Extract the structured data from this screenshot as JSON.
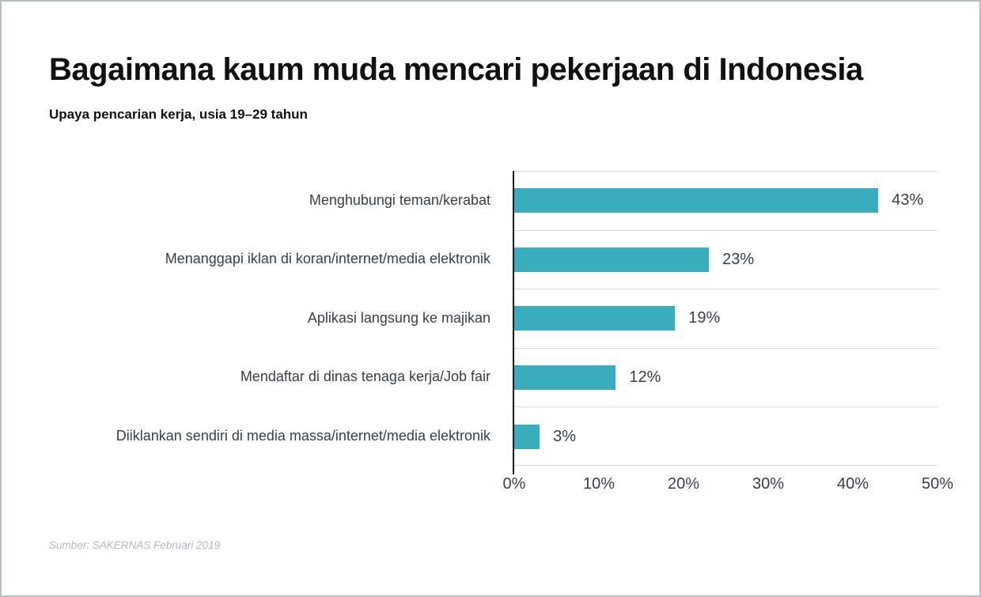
{
  "page": {
    "title": "Bagaimana kaum muda mencari pekerjaan di Indonesia",
    "subtitle": "Upaya pencarian kerja, usia 19–29 tahun",
    "source": "Sumber: SAKERNAS Februari 2019"
  },
  "colors": {
    "bar": "#3AADBD",
    "text": "#36404D",
    "grid": "#D8DCDE",
    "axis": "#1A1A1A",
    "source_text": "#B3B9BD",
    "page_border": "#B7BEC1",
    "title_color": "#111111"
  },
  "chart_data": {
    "type": "bar",
    "orientation": "horizontal",
    "title": "Bagaimana kaum muda mencari pekerjaan di Indonesia",
    "subtitle": "Upaya pencarian kerja, usia 19–29 tahun",
    "categories": [
      "Menghubungi teman/kerabat",
      "Menanggapi iklan di koran/internet/media elektronik",
      "Aplikasi langsung ke majikan",
      "Mendaftar di dinas tenaga kerja/Job fair",
      "Diiklankan sendiri di media massa/internet/media elektronik"
    ],
    "values": [
      43,
      23,
      19,
      12,
      3
    ],
    "value_labels": [
      "43%",
      "23%",
      "19%",
      "12%",
      "3%"
    ],
    "xlabel": "",
    "ylabel": "",
    "xlim": [
      0,
      50
    ],
    "x_ticks": [
      "0%",
      "10%",
      "20%",
      "30%",
      "40%",
      "50%"
    ],
    "grid": "horizontal row separators only, in plot area",
    "legend": "none",
    "source": "Sumber: SAKERNAS Februari 2019"
  }
}
